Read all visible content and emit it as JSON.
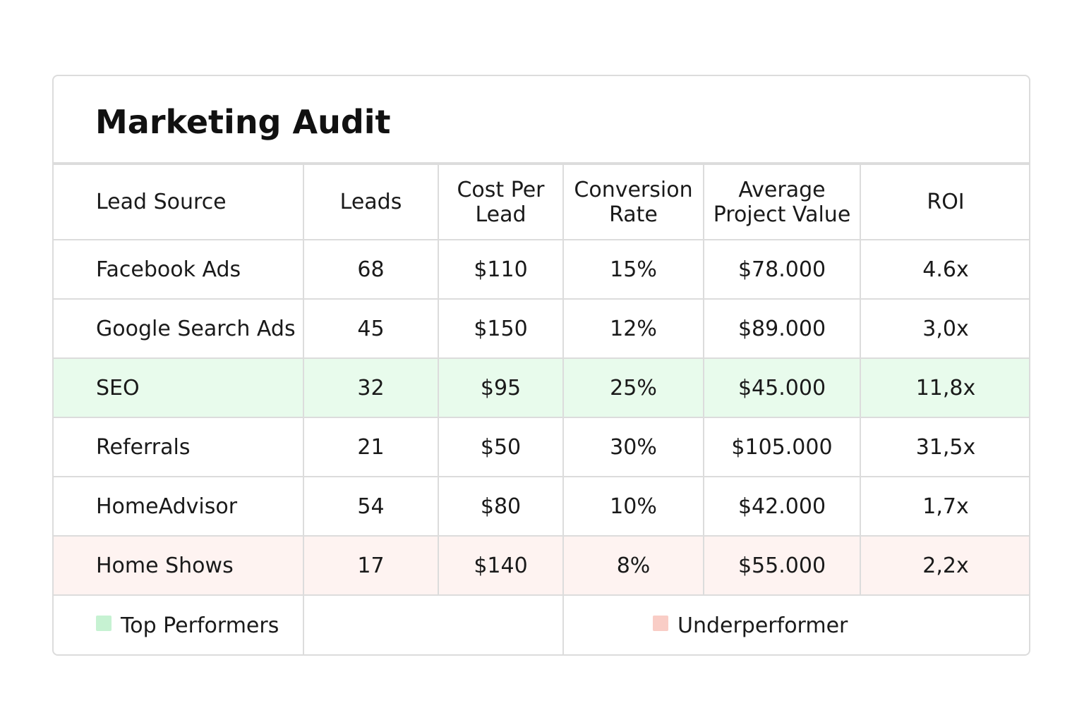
{
  "title": "Marketing Audit",
  "columns": [
    [
      "Lead Source"
    ],
    [
      "Leads"
    ],
    [
      "Cost Per",
      "Lead"
    ],
    [
      "Conversion",
      "Rate"
    ],
    [
      "Average",
      "Project Value"
    ],
    [
      "ROI"
    ]
  ],
  "rows": [
    {
      "source": "Facebook Ads",
      "leads": "68",
      "cost_per_lead": "$110",
      "conversion_rate": "15%",
      "avg_project_value": "$78.000",
      "roi": "4.6x",
      "highlight": "none"
    },
    {
      "source": "Google Search Ads",
      "leads": "45",
      "cost_per_lead": "$150",
      "conversion_rate": "12%",
      "avg_project_value": "$89.000",
      "roi": "3,0x",
      "highlight": "none"
    },
    {
      "source": "SEO",
      "leads": "32",
      "cost_per_lead": "$95",
      "conversion_rate": "25%",
      "avg_project_value": "$45.000",
      "roi": "11,8x",
      "highlight": "top"
    },
    {
      "source": "Referrals",
      "leads": "21",
      "cost_per_lead": "$50",
      "conversion_rate": "30%",
      "avg_project_value": "$105.000",
      "roi": "31,5x",
      "highlight": "none"
    },
    {
      "source": "HomeAdvisor",
      "leads": "54",
      "cost_per_lead": "$80",
      "conversion_rate": "10%",
      "avg_project_value": "$42.000",
      "roi": "1,7x",
      "highlight": "none"
    },
    {
      "source": "Home Shows",
      "leads": "17",
      "cost_per_lead": "$140",
      "conversion_rate": "8%",
      "avg_project_value": "$55.000",
      "roi": "2,2x",
      "highlight": "under"
    }
  ],
  "legend": {
    "top": {
      "label": "Top Performers",
      "color": "#c6f2d2"
    },
    "under": {
      "label": "Underperformer",
      "color": "#f9cdc6"
    }
  },
  "colors": {
    "top_row_bg": "#e8fbec",
    "under_row_bg": "#fef3f1",
    "border": "#dcdcdc"
  }
}
